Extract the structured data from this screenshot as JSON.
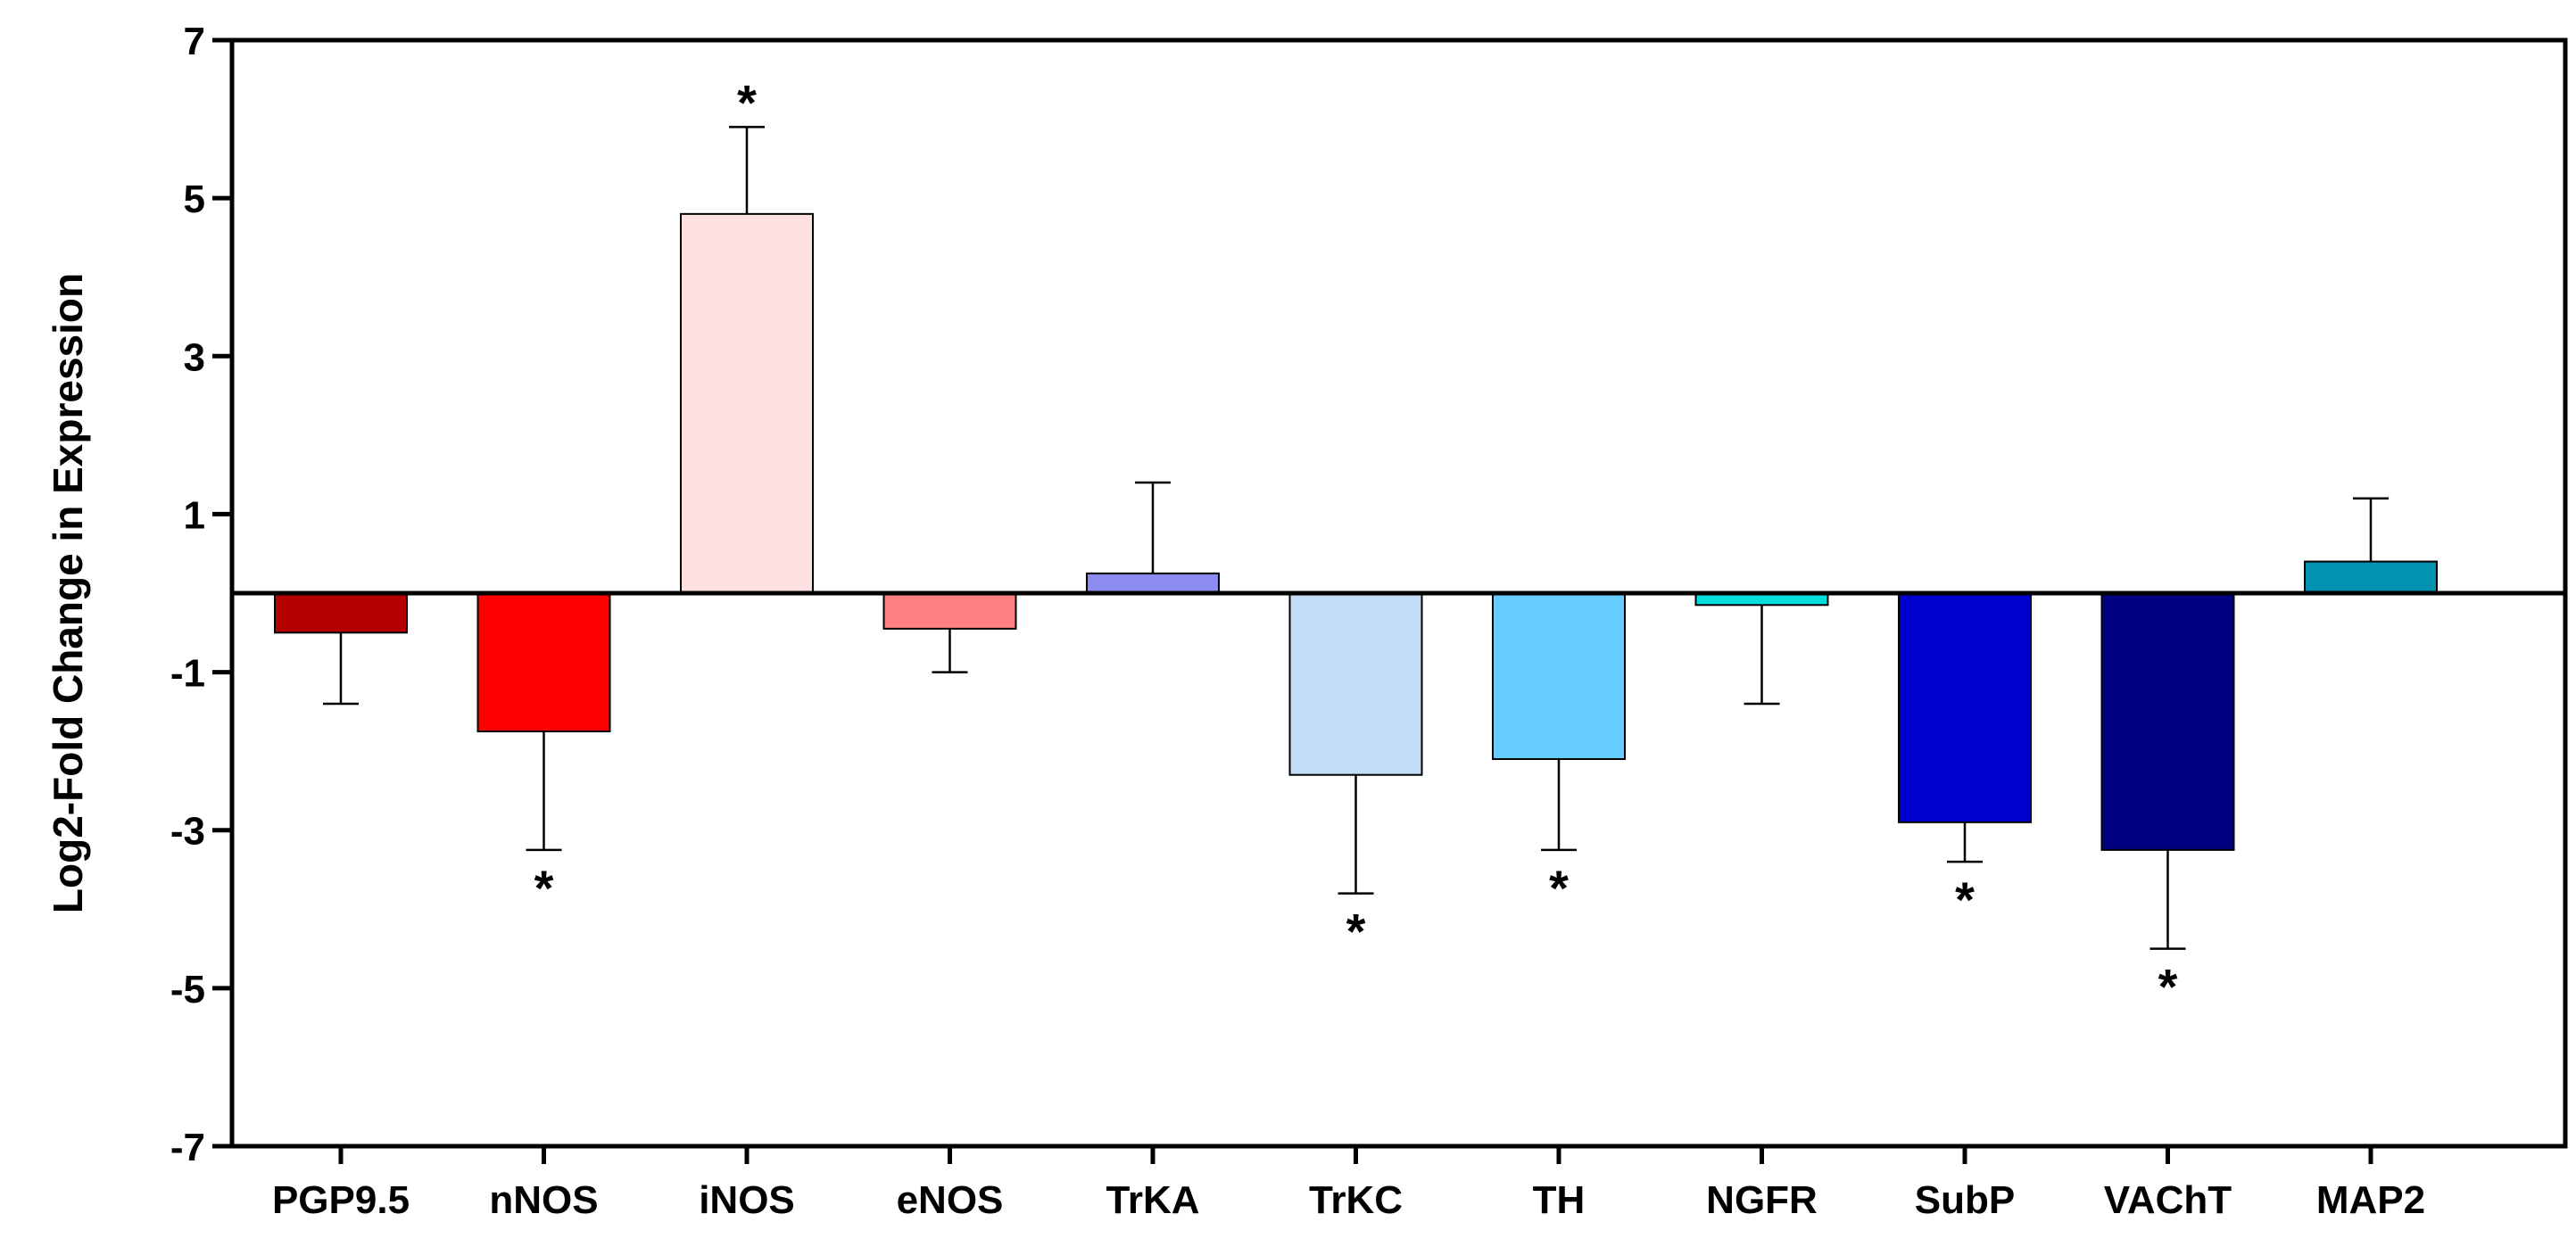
{
  "chart_data": {
    "type": "bar",
    "title": "",
    "xlabel": "",
    "ylabel": "Log2-Fold Change in Expression",
    "ylim": [
      -7,
      7
    ],
    "yticks": [
      "7",
      "5",
      "3",
      "1",
      "-1",
      "-3",
      "-5",
      "-7"
    ],
    "grid": false,
    "legend": "none",
    "categories": [
      "PGP9.5",
      "nNOS",
      "iNOS",
      "eNOS",
      "TrKA",
      "TrKC",
      "TH",
      "NGFR",
      "SubP",
      "VAChT",
      "MAP2"
    ],
    "values": [
      -0.5,
      -1.75,
      4.8,
      -0.45,
      0.25,
      -2.3,
      -2.1,
      -0.15,
      -2.9,
      -3.25,
      0.4
    ],
    "error": [
      0.9,
      1.5,
      1.1,
      0.55,
      1.15,
      1.5,
      1.15,
      1.25,
      0.5,
      1.25,
      0.8
    ],
    "significance_marker": "*",
    "significant": [
      false,
      true,
      true,
      false,
      false,
      true,
      true,
      false,
      true,
      true,
      false
    ],
    "colors": [
      "#B40000",
      "#FF0000",
      "#FFE0E0",
      "#FF8080",
      "#8C8CF0",
      "#C2DDF5",
      "#66CCFF",
      "#00DDDD",
      "#0000CC",
      "#000080",
      "#0092B0"
    ]
  }
}
